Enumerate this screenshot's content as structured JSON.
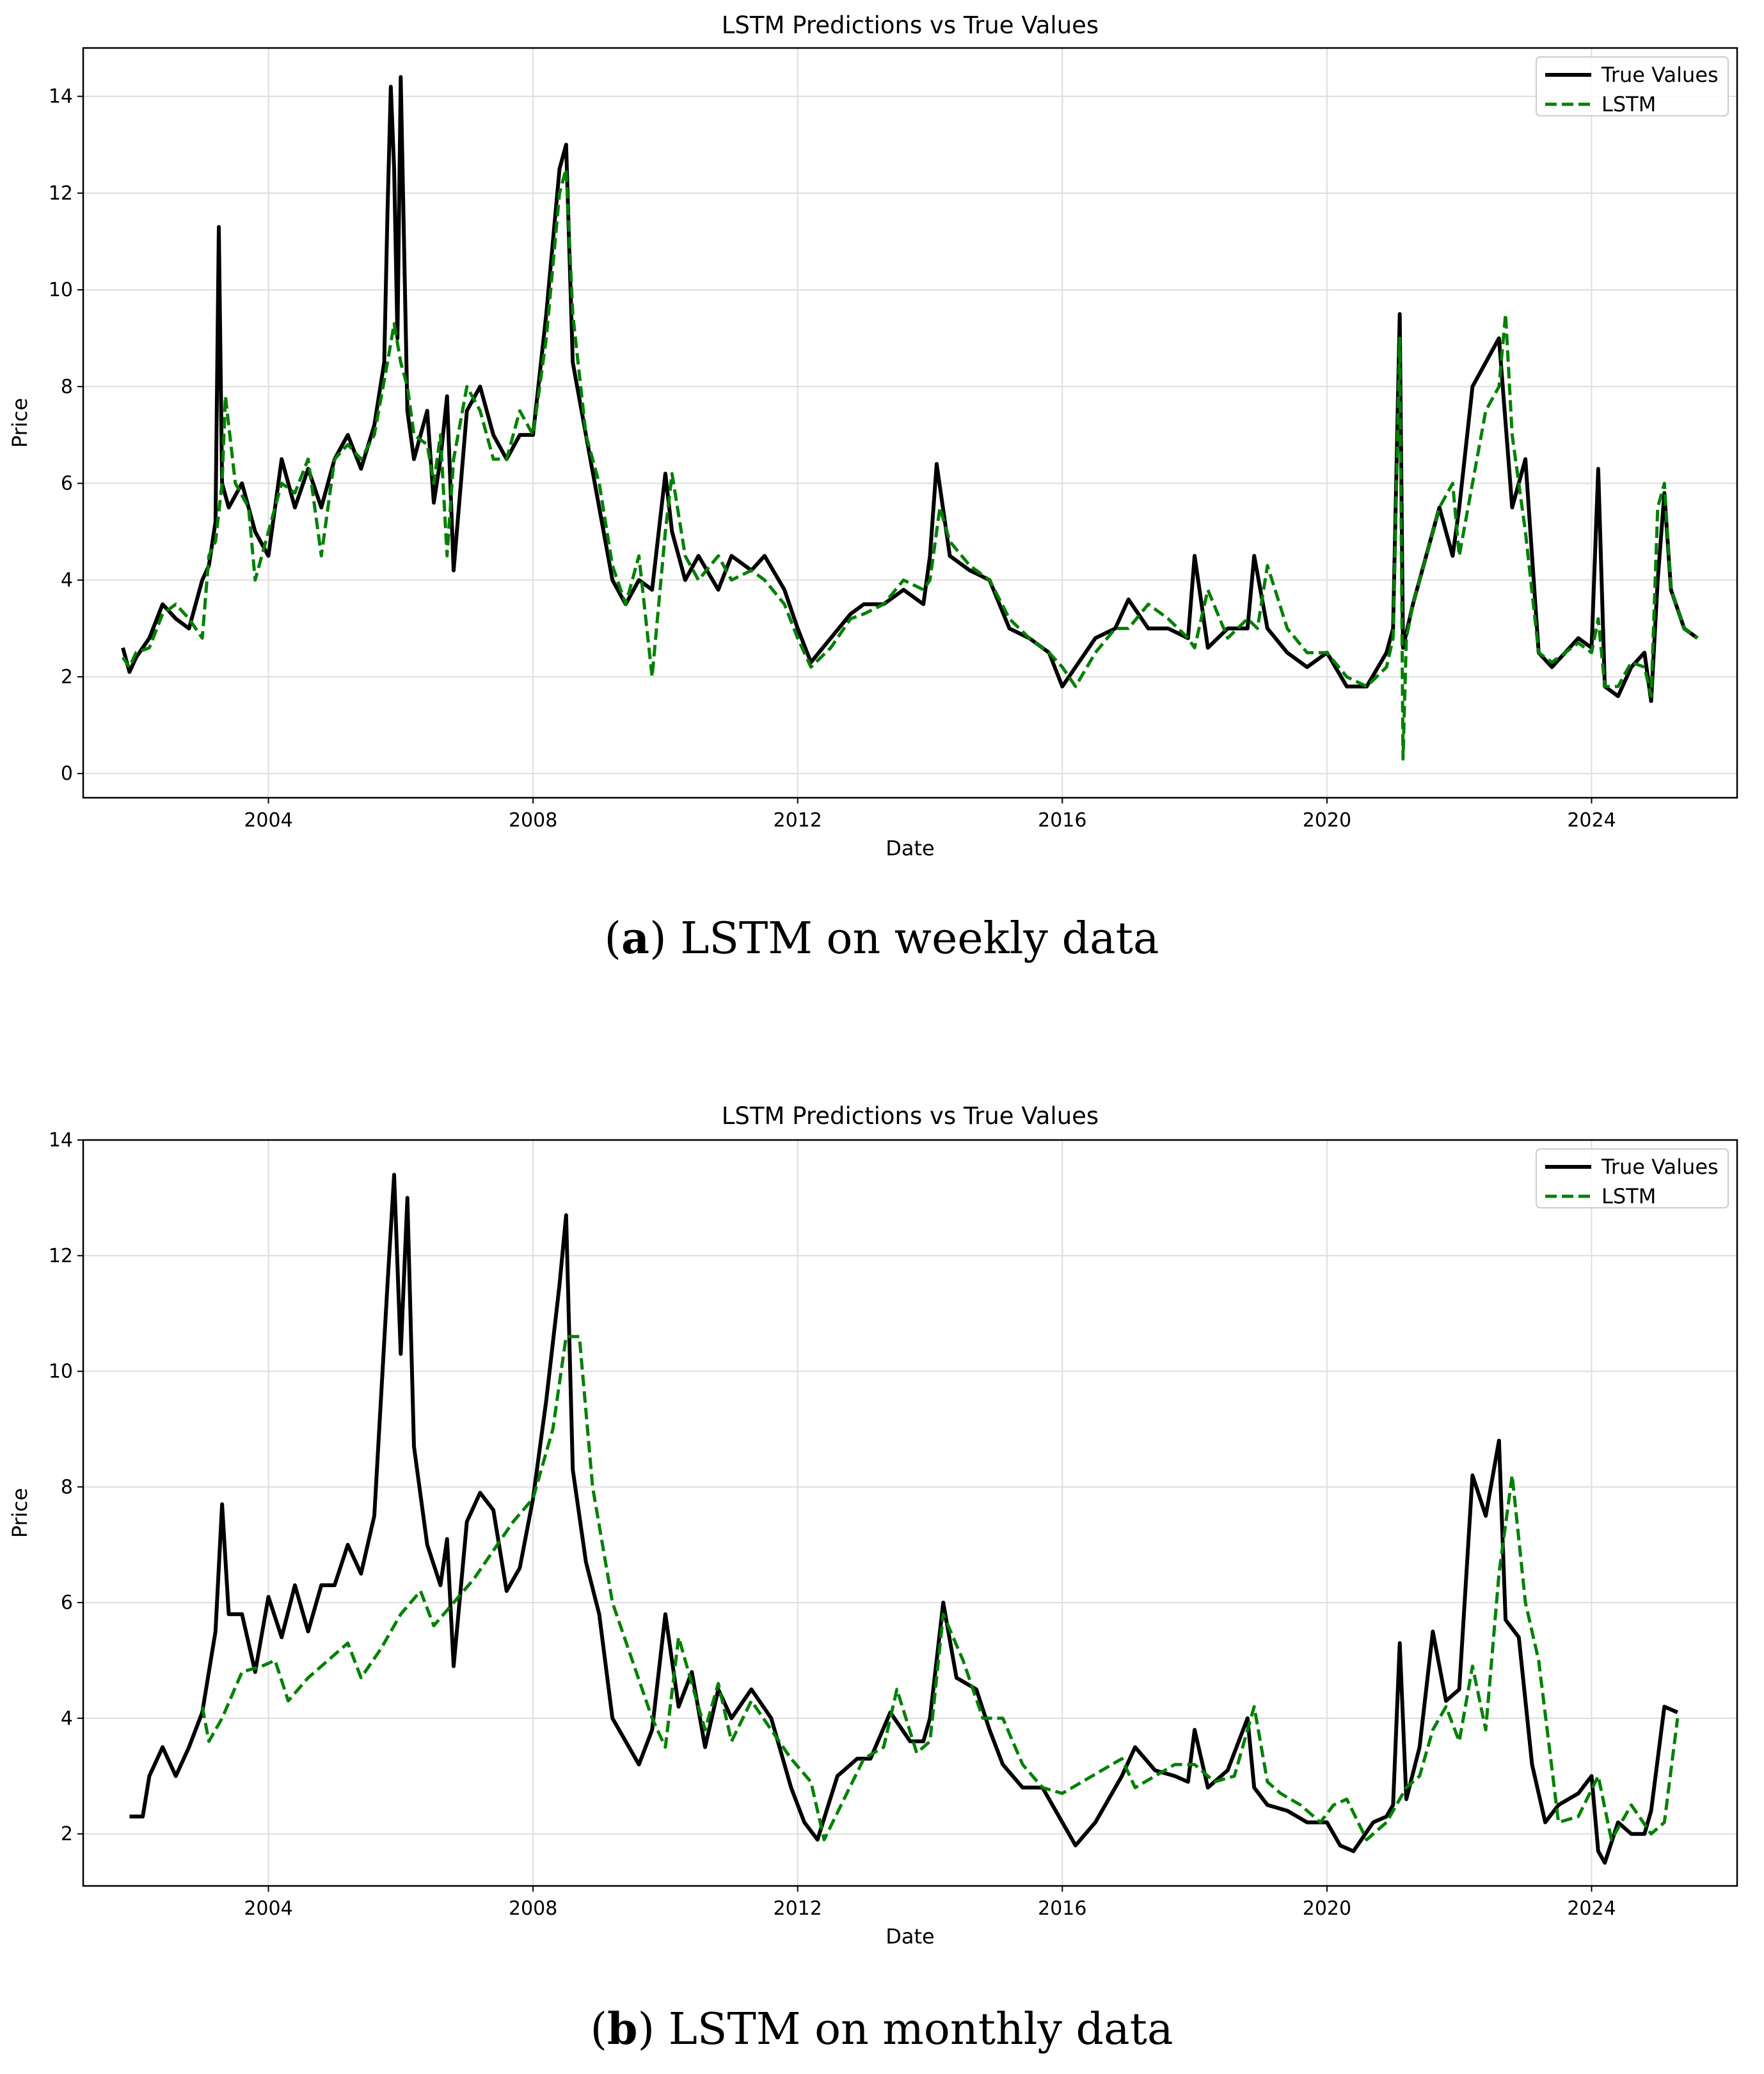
{
  "chart_data": [
    {
      "type": "line",
      "title": "LSTM Predictions vs True Values",
      "xlabel": "Date",
      "ylabel": "Price",
      "caption_letter": "a",
      "caption_text": ") LSTM on weekly data",
      "xlim": [
        2001.2,
        2026.2
      ],
      "ylim": [
        -0.5,
        15.0
      ],
      "xticks": [
        2004,
        2008,
        2012,
        2016,
        2020,
        2024
      ],
      "xtick_labels": [
        "2004",
        "2008",
        "2012",
        "2016",
        "2020",
        "2024"
      ],
      "yticks": [
        0,
        2,
        4,
        6,
        8,
        10,
        12,
        14
      ],
      "ytick_labels": [
        "0",
        "2",
        "4",
        "6",
        "8",
        "10",
        "12",
        "14"
      ],
      "grid": true,
      "legend_position": "top-right",
      "series": [
        {
          "name": "True Values",
          "color": "#000000",
          "style": "solid",
          "x": [
            2001.8,
            2001.9,
            2002.0,
            2002.2,
            2002.4,
            2002.6,
            2002.8,
            2003.0,
            2003.1,
            2003.2,
            2003.25,
            2003.3,
            2003.4,
            2003.6,
            2003.8,
            2004.0,
            2004.2,
            2004.4,
            2004.6,
            2004.8,
            2005.0,
            2005.2,
            2005.4,
            2005.6,
            2005.75,
            2005.8,
            2005.85,
            2005.9,
            2005.95,
            2006.0,
            2006.1,
            2006.2,
            2006.4,
            2006.5,
            2006.6,
            2006.7,
            2006.8,
            2007.0,
            2007.2,
            2007.4,
            2007.6,
            2007.8,
            2008.0,
            2008.2,
            2008.4,
            2008.5,
            2008.6,
            2008.8,
            2009.0,
            2009.2,
            2009.4,
            2009.6,
            2009.8,
            2010.0,
            2010.1,
            2010.3,
            2010.5,
            2010.8,
            2011.0,
            2011.3,
            2011.5,
            2011.8,
            2012.0,
            2012.2,
            2012.5,
            2012.8,
            2013.0,
            2013.3,
            2013.6,
            2013.9,
            2014.0,
            2014.1,
            2014.3,
            2014.6,
            2014.9,
            2015.2,
            2015.5,
            2015.8,
            2016.0,
            2016.2,
            2016.5,
            2016.8,
            2017.0,
            2017.3,
            2017.6,
            2017.9,
            2018.0,
            2018.2,
            2018.5,
            2018.8,
            2018.9,
            2019.1,
            2019.4,
            2019.7,
            2020.0,
            2020.3,
            2020.6,
            2020.9,
            2021.0,
            2021.1,
            2021.15,
            2021.3,
            2021.5,
            2021.7,
            2021.9,
            2022.0,
            2022.2,
            2022.4,
            2022.6,
            2022.8,
            2023.0,
            2023.2,
            2023.4,
            2023.6,
            2023.8,
            2024.0,
            2024.1,
            2024.2,
            2024.4,
            2024.6,
            2024.8,
            2024.9,
            2025.0,
            2025.1,
            2025.2,
            2025.4,
            2025.6
          ],
          "y": [
            2.6,
            2.1,
            2.4,
            2.8,
            3.5,
            3.2,
            3.0,
            4.0,
            4.3,
            5.2,
            11.3,
            6.0,
            5.5,
            6.0,
            5.0,
            4.5,
            6.5,
            5.5,
            6.3,
            5.5,
            6.5,
            7.0,
            6.3,
            7.2,
            8.5,
            11.6,
            14.2,
            12.5,
            9.0,
            14.4,
            7.5,
            6.5,
            7.5,
            5.6,
            6.5,
            7.8,
            4.2,
            7.5,
            8.0,
            7.0,
            6.5,
            7.0,
            7.0,
            9.5,
            12.5,
            13.0,
            8.5,
            7.0,
            5.5,
            4.0,
            3.5,
            4.0,
            3.8,
            6.2,
            5.0,
            4.0,
            4.5,
            3.8,
            4.5,
            4.2,
            4.5,
            3.8,
            3.0,
            2.3,
            2.8,
            3.3,
            3.5,
            3.5,
            3.8,
            3.5,
            4.5,
            6.4,
            4.5,
            4.2,
            4.0,
            3.0,
            2.8,
            2.5,
            1.8,
            2.2,
            2.8,
            3.0,
            3.6,
            3.0,
            3.0,
            2.8,
            4.5,
            2.6,
            3.0,
            3.0,
            4.5,
            3.0,
            2.5,
            2.2,
            2.5,
            1.8,
            1.8,
            2.5,
            3.0,
            9.5,
            2.6,
            3.5,
            4.5,
            5.5,
            4.5,
            5.5,
            8.0,
            8.5,
            9.0,
            5.5,
            6.5,
            2.5,
            2.2,
            2.5,
            2.8,
            2.6,
            6.3,
            1.8,
            1.6,
            2.2,
            2.5,
            1.5,
            4.0,
            5.8,
            3.8,
            3.0,
            2.8
          ]
        },
        {
          "name": "LSTM",
          "color": "#008000",
          "style": "dashed",
          "x": [
            2001.8,
            2001.9,
            2002.0,
            2002.2,
            2002.4,
            2002.6,
            2002.8,
            2003.0,
            2003.1,
            2003.2,
            2003.3,
            2003.35,
            2003.5,
            2003.7,
            2003.8,
            2004.0,
            2004.2,
            2004.4,
            2004.6,
            2004.8,
            2005.0,
            2005.2,
            2005.4,
            2005.6,
            2005.8,
            2005.9,
            2006.0,
            2006.1,
            2006.2,
            2006.4,
            2006.5,
            2006.6,
            2006.7,
            2006.8,
            2007.0,
            2007.2,
            2007.4,
            2007.6,
            2007.8,
            2008.0,
            2008.2,
            2008.4,
            2008.5,
            2008.6,
            2008.8,
            2009.0,
            2009.2,
            2009.4,
            2009.6,
            2009.8,
            2010.0,
            2010.1,
            2010.3,
            2010.5,
            2010.8,
            2011.0,
            2011.3,
            2011.5,
            2011.8,
            2012.0,
            2012.2,
            2012.5,
            2012.8,
            2013.0,
            2013.3,
            2013.6,
            2013.9,
            2014.0,
            2014.15,
            2014.3,
            2014.6,
            2014.9,
            2015.2,
            2015.5,
            2015.8,
            2016.0,
            2016.2,
            2016.5,
            2016.8,
            2017.0,
            2017.3,
            2017.6,
            2017.9,
            2018.0,
            2018.2,
            2018.5,
            2018.8,
            2018.95,
            2019.1,
            2019.4,
            2019.7,
            2020.0,
            2020.3,
            2020.6,
            2020.9,
            2021.0,
            2021.1,
            2021.15,
            2021.2,
            2021.3,
            2021.5,
            2021.7,
            2021.9,
            2022.0,
            2022.2,
            2022.4,
            2022.6,
            2022.7,
            2022.8,
            2023.0,
            2023.2,
            2023.4,
            2023.6,
            2023.8,
            2024.0,
            2024.1,
            2024.2,
            2024.4,
            2024.6,
            2024.8,
            2024.9,
            2025.0,
            2025.1,
            2025.2,
            2025.4,
            2025.6
          ],
          "y": [
            2.4,
            2.2,
            2.5,
            2.6,
            3.3,
            3.5,
            3.2,
            2.8,
            4.5,
            4.8,
            6.0,
            7.8,
            6.0,
            5.5,
            4.0,
            5.0,
            6.0,
            5.8,
            6.5,
            4.5,
            6.5,
            6.8,
            6.5,
            7.0,
            8.5,
            9.3,
            8.5,
            8.0,
            7.0,
            6.8,
            6.0,
            7.0,
            4.5,
            6.5,
            8.0,
            7.5,
            6.5,
            6.5,
            7.5,
            7.0,
            9.0,
            12.0,
            12.5,
            9.5,
            7.0,
            6.0,
            4.3,
            3.5,
            4.5,
            2.0,
            5.0,
            6.2,
            4.5,
            4.0,
            4.5,
            4.0,
            4.2,
            4.0,
            3.5,
            2.8,
            2.2,
            2.6,
            3.2,
            3.3,
            3.5,
            4.0,
            3.8,
            4.0,
            5.5,
            4.8,
            4.3,
            4.0,
            3.2,
            2.8,
            2.5,
            2.2,
            1.8,
            2.5,
            3.0,
            3.0,
            3.5,
            3.2,
            2.8,
            2.6,
            3.8,
            2.8,
            3.2,
            3.0,
            4.3,
            3.0,
            2.5,
            2.5,
            2.0,
            1.8,
            2.2,
            2.8,
            9.0,
            0.3,
            2.8,
            3.5,
            4.5,
            5.5,
            6.0,
            4.5,
            6.0,
            7.5,
            8.0,
            9.5,
            7.0,
            5.0,
            2.5,
            2.3,
            2.5,
            2.7,
            2.5,
            3.2,
            1.8,
            1.8,
            2.3,
            2.2,
            1.6,
            5.5,
            6.0,
            3.8,
            3.0,
            2.8
          ]
        }
      ]
    },
    {
      "type": "line",
      "title": "LSTM Predictions vs True Values",
      "xlabel": "Date",
      "ylabel": "Price",
      "caption_letter": "b",
      "caption_text": ") LSTM on monthly data",
      "xlim": [
        2001.2,
        2026.2
      ],
      "ylim": [
        1.1,
        14.0
      ],
      "xticks": [
        2004,
        2008,
        2012,
        2016,
        2020,
        2024
      ],
      "xtick_labels": [
        "2004",
        "2008",
        "2012",
        "2016",
        "2020",
        "2024"
      ],
      "yticks": [
        2,
        4,
        6,
        8,
        10,
        12,
        14
      ],
      "ytick_labels": [
        "2",
        "4",
        "6",
        "8",
        "10",
        "12",
        "14"
      ],
      "grid": true,
      "legend_position": "top-right",
      "series": [
        {
          "name": "True Values",
          "color": "#000000",
          "style": "solid",
          "x": [
            2001.9,
            2002.1,
            2002.2,
            2002.4,
            2002.6,
            2002.8,
            2003.0,
            2003.2,
            2003.3,
            2003.4,
            2003.6,
            2003.8,
            2004.0,
            2004.2,
            2004.4,
            2004.6,
            2004.8,
            2005.0,
            2005.2,
            2005.4,
            2005.6,
            2005.8,
            2005.9,
            2006.0,
            2006.1,
            2006.2,
            2006.4,
            2006.6,
            2006.7,
            2006.8,
            2007.0,
            2007.2,
            2007.4,
            2007.6,
            2007.8,
            2008.0,
            2008.2,
            2008.4,
            2008.5,
            2008.6,
            2008.8,
            2009.0,
            2009.2,
            2009.4,
            2009.6,
            2009.8,
            2010.0,
            2010.2,
            2010.4,
            2010.6,
            2010.8,
            2011.0,
            2011.3,
            2011.6,
            2011.9,
            2012.1,
            2012.3,
            2012.6,
            2012.9,
            2013.1,
            2013.4,
            2013.7,
            2013.9,
            2014.0,
            2014.2,
            2014.4,
            2014.7,
            2014.9,
            2015.1,
            2015.4,
            2015.7,
            2016.0,
            2016.2,
            2016.5,
            2016.7,
            2016.9,
            2017.1,
            2017.4,
            2017.7,
            2017.9,
            2018.0,
            2018.2,
            2018.5,
            2018.8,
            2018.9,
            2019.1,
            2019.4,
            2019.7,
            2020.0,
            2020.2,
            2020.4,
            2020.7,
            2020.9,
            2021.0,
            2021.1,
            2021.2,
            2021.4,
            2021.6,
            2021.8,
            2022.0,
            2022.2,
            2022.4,
            2022.6,
            2022.7,
            2022.9,
            2023.1,
            2023.3,
            2023.5,
            2023.8,
            2024.0,
            2024.1,
            2024.2,
            2024.4,
            2024.6,
            2024.8,
            2024.9,
            2025.1,
            2025.3
          ],
          "y": [
            2.3,
            2.3,
            3.0,
            3.5,
            3.0,
            3.5,
            4.1,
            5.5,
            7.7,
            5.8,
            5.8,
            4.8,
            6.1,
            5.4,
            6.3,
            5.5,
            6.3,
            6.3,
            7.0,
            6.5,
            7.5,
            11.5,
            13.4,
            10.3,
            13.0,
            8.7,
            7.0,
            6.3,
            7.1,
            4.9,
            7.4,
            7.9,
            7.6,
            6.2,
            6.6,
            7.8,
            9.5,
            11.5,
            12.7,
            8.3,
            6.7,
            5.8,
            4.0,
            3.6,
            3.2,
            3.8,
            5.8,
            4.2,
            4.8,
            3.5,
            4.5,
            4.0,
            4.5,
            4.0,
            2.8,
            2.2,
            1.9,
            3.0,
            3.3,
            3.3,
            4.1,
            3.6,
            3.6,
            4.0,
            6.0,
            4.7,
            4.5,
            3.8,
            3.2,
            2.8,
            2.8,
            2.2,
            1.8,
            2.2,
            2.6,
            3.0,
            3.5,
            3.1,
            3.0,
            2.9,
            3.8,
            2.8,
            3.1,
            4.0,
            2.8,
            2.5,
            2.4,
            2.2,
            2.2,
            1.8,
            1.7,
            2.2,
            2.3,
            2.5,
            5.3,
            2.6,
            3.5,
            5.5,
            4.3,
            4.5,
            8.2,
            7.5,
            8.8,
            5.7,
            5.4,
            3.2,
            2.2,
            2.5,
            2.7,
            3.0,
            1.7,
            1.5,
            2.2,
            2.0,
            2.0,
            2.4,
            4.2,
            4.1
          ]
        },
        {
          "name": "LSTM",
          "color": "#008000",
          "style": "dashed",
          "x": [
            2003.0,
            2003.1,
            2003.3,
            2003.6,
            2003.9,
            2004.1,
            2004.3,
            2004.6,
            2004.9,
            2005.2,
            2005.4,
            2005.7,
            2006.0,
            2006.3,
            2006.5,
            2006.8,
            2007.1,
            2007.4,
            2007.7,
            2008.0,
            2008.3,
            2008.5,
            2008.7,
            2008.9,
            2009.2,
            2009.5,
            2009.8,
            2010.0,
            2010.2,
            2010.4,
            2010.6,
            2010.8,
            2011.0,
            2011.3,
            2011.6,
            2011.9,
            2012.2,
            2012.4,
            2012.7,
            2013.0,
            2013.3,
            2013.5,
            2013.8,
            2014.0,
            2014.2,
            2014.5,
            2014.8,
            2015.1,
            2015.4,
            2015.7,
            2016.0,
            2016.3,
            2016.6,
            2016.9,
            2017.1,
            2017.4,
            2017.7,
            2018.0,
            2018.3,
            2018.6,
            2018.9,
            2019.1,
            2019.3,
            2019.6,
            2019.9,
            2020.1,
            2020.3,
            2020.6,
            2020.9,
            2021.2,
            2021.4,
            2021.6,
            2021.8,
            2022.0,
            2022.2,
            2022.4,
            2022.6,
            2022.8,
            2023.0,
            2023.2,
            2023.5,
            2023.8,
            2024.1,
            2024.3,
            2024.6,
            2024.9,
            2025.1,
            2025.3
          ],
          "y": [
            4.2,
            3.6,
            4.0,
            4.8,
            4.9,
            5.0,
            4.3,
            4.7,
            5.0,
            5.3,
            4.7,
            5.2,
            5.8,
            6.2,
            5.6,
            6.0,
            6.4,
            6.9,
            7.4,
            7.8,
            9.0,
            10.6,
            10.6,
            8.0,
            6.0,
            5.0,
            4.0,
            3.5,
            5.4,
            4.6,
            3.8,
            4.6,
            3.6,
            4.3,
            3.8,
            3.3,
            2.9,
            1.9,
            2.6,
            3.3,
            3.5,
            4.5,
            3.4,
            3.6,
            5.8,
            5.0,
            4.0,
            4.0,
            3.2,
            2.8,
            2.7,
            2.9,
            3.1,
            3.3,
            2.8,
            3.0,
            3.2,
            3.2,
            2.9,
            3.0,
            4.2,
            2.9,
            2.7,
            2.5,
            2.2,
            2.5,
            2.6,
            1.9,
            2.2,
            2.8,
            3.0,
            3.8,
            4.2,
            3.6,
            4.9,
            3.8,
            6.5,
            8.2,
            6.0,
            5.0,
            2.2,
            2.3,
            3.0,
            1.9,
            2.5,
            2.0,
            2.2,
            4.0
          ]
        }
      ]
    }
  ]
}
